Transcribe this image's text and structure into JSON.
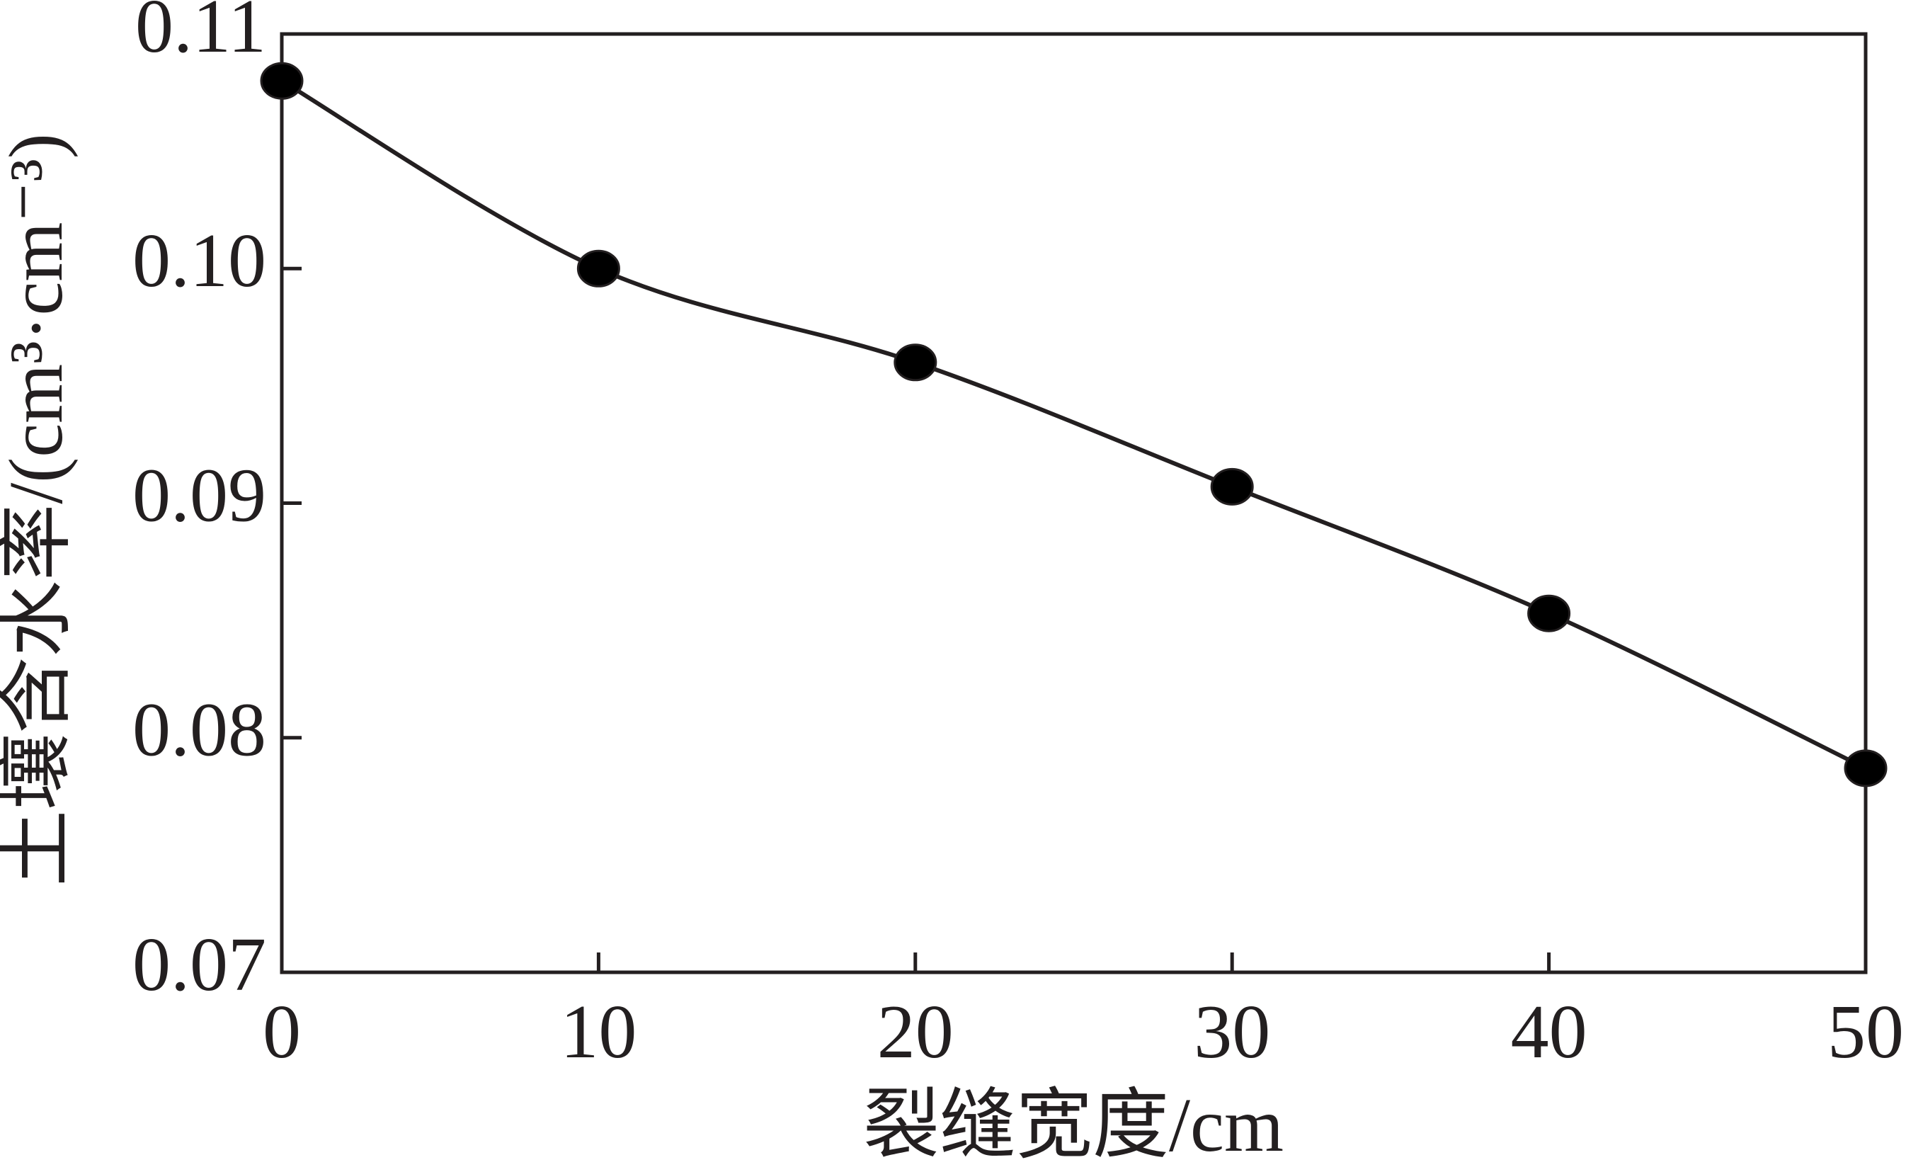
{
  "chart_data": {
    "type": "line",
    "x_label": "裂缝宽度/cm",
    "y_label": "土壤含水率/(cm³·cm⁻³)",
    "x": [
      0,
      10,
      20,
      30,
      40,
      50
    ],
    "series": [
      {
        "color": "#231f20",
        "values": [
          0.108,
          0.1,
          0.096,
          0.0907,
          0.0853,
          0.0787
        ]
      }
    ],
    "xlim": [
      0,
      50
    ],
    "xticks": [
      0,
      10,
      20,
      30,
      40,
      50
    ],
    "ylim": [
      0.07,
      0.11
    ],
    "yticks": [
      0.07,
      0.08,
      0.09,
      {
        "value": 0.1,
        "label": "0.10"
      },
      0.11
    ],
    "grid": false,
    "markers": true
  }
}
